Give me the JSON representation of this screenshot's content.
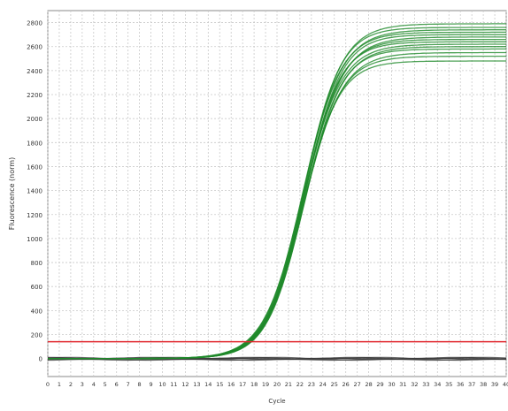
{
  "chart_data": {
    "type": "line",
    "xlabel": "Cycle",
    "ylabel": "Fluorescence (norm)",
    "xlim": [
      0,
      40
    ],
    "ylim": [
      -150,
      2900
    ],
    "x_ticks": [
      "0",
      "1",
      "2",
      "3",
      "4",
      "5",
      "6",
      "7",
      "8",
      "9",
      "10",
      "11",
      "12",
      "13",
      "14",
      "15",
      "16",
      "17",
      "18",
      "19",
      "20",
      "21",
      "22",
      "23",
      "24",
      "25",
      "26",
      "27",
      "28",
      "29",
      "30",
      "31",
      "32",
      "33",
      "34",
      "35",
      "36",
      "37",
      "38",
      "39",
      "40"
    ],
    "y_ticks": [
      0,
      200,
      400,
      600,
      800,
      1000,
      1200,
      1400,
      1600,
      1800,
      2000,
      2200,
      2400,
      2600,
      2800
    ],
    "grid": true,
    "threshold": {
      "value": 140,
      "color": "#e0262d"
    },
    "amplification_curve_model": {
      "baseline": 0,
      "midpoint_cycle": 22.3,
      "slope_cycles": 1.6,
      "plateau_values": [
        2480,
        2520,
        2550,
        2580,
        2600,
        2620,
        2640,
        2660,
        2680,
        2700,
        2720,
        2740,
        2760,
        2790
      ],
      "color": "#1f8a2a"
    },
    "negative_curves": {
      "count": 6,
      "approx_values": [
        0,
        -10,
        10
      ],
      "color": "#3a3a3a"
    }
  },
  "colors": {
    "amplification": "#1f8a2a",
    "threshold": "#e0262d",
    "negative": "#3a3a3a",
    "grid": "#c9c9c9",
    "axis": "#777777"
  }
}
